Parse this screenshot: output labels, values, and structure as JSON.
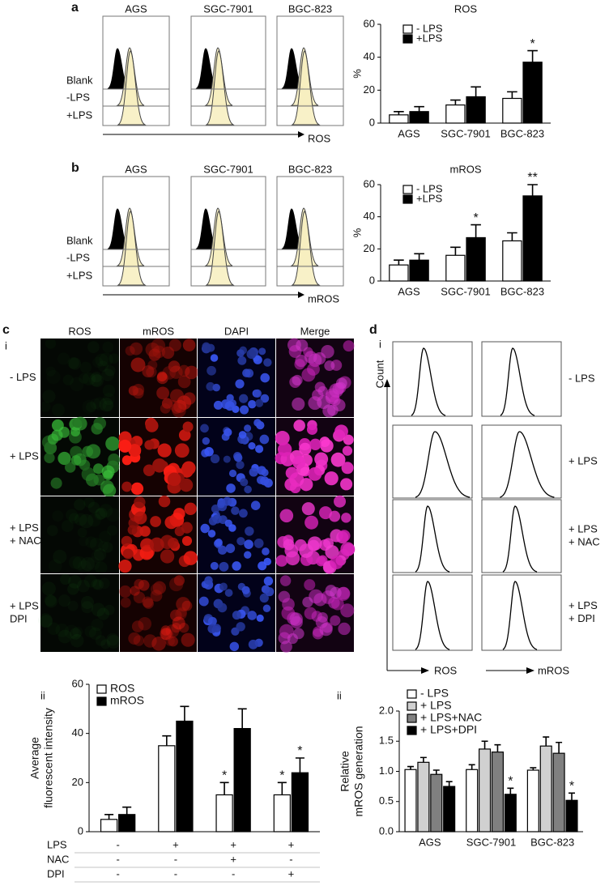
{
  "figure": {
    "panel_a": {
      "label": "a",
      "columns": [
        "AGS",
        "SGC-7901",
        "BGC-823"
      ],
      "rows": [
        "Blank",
        "-LPS",
        "+LPS"
      ],
      "axis": "ROS"
    },
    "panel_b": {
      "label": "b",
      "columns": [
        "AGS",
        "SGC-7901",
        "BGC-823"
      ],
      "rows": [
        "Blank",
        "-LPS",
        "+LPS"
      ],
      "axis": "mROS"
    },
    "panel_c": {
      "label": "c",
      "sub_i": "i",
      "sub_ii": "ii",
      "columns": [
        "ROS",
        "mROS",
        "DAPI",
        "Merge"
      ],
      "rows": [
        [
          "- LPS"
        ],
        [
          "+ LPS"
        ],
        [
          "+ LPS",
          "+ NAC"
        ],
        [
          "+ LPS",
          "DPI"
        ]
      ]
    },
    "panel_d": {
      "label": "d",
      "sub_i": "i",
      "sub_ii": "ii",
      "y_axis": "Count",
      "rows": [
        [
          "- LPS"
        ],
        [
          "+ LPS"
        ],
        [
          "+ LPS",
          "+ NAC"
        ],
        [
          "+ LPS",
          "+ DPI"
        ]
      ],
      "axes": [
        "ROS",
        "mROS"
      ]
    }
  },
  "chart_data": [
    {
      "type": "bar",
      "title": "ROS",
      "ylabel": "%",
      "categories": [
        "AGS",
        "SGC-7901",
        "BGC-823"
      ],
      "series": [
        {
          "name": "- LPS",
          "color": "#ffffff",
          "values": [
            5,
            11,
            15
          ],
          "errors": [
            2,
            3,
            4
          ],
          "markers": [
            null,
            null,
            null
          ]
        },
        {
          "name": "+LPS",
          "color": "#000000",
          "values": [
            7,
            16,
            37
          ],
          "errors": [
            3,
            6,
            7
          ],
          "markers": [
            null,
            null,
            "*"
          ]
        }
      ],
      "ylim": [
        0,
        60
      ],
      "yticks": [
        0,
        20,
        40,
        60
      ]
    },
    {
      "type": "bar",
      "title": "mROS",
      "ylabel": "%",
      "categories": [
        "AGS",
        "SGC-7901",
        "BGC-823"
      ],
      "series": [
        {
          "name": "- LPS",
          "color": "#ffffff",
          "values": [
            10,
            16,
            25
          ],
          "errors": [
            3,
            5,
            5
          ],
          "markers": [
            null,
            null,
            null
          ]
        },
        {
          "name": "+LPS",
          "color": "#000000",
          "values": [
            13,
            27,
            53
          ],
          "errors": [
            4,
            8,
            7
          ],
          "markers": [
            null,
            "*",
            "**"
          ]
        }
      ],
      "ylim": [
        0,
        60
      ],
      "yticks": [
        0,
        20,
        40,
        60
      ]
    },
    {
      "type": "bar",
      "ylabel": [
        "Average",
        "fluorescent intensity"
      ],
      "categories": [
        null,
        null,
        null,
        null
      ],
      "series": [
        {
          "name": "ROS",
          "color": "#ffffff",
          "values": [
            5,
            35,
            15,
            15
          ],
          "errors": [
            2,
            4,
            5,
            5
          ],
          "markers": [
            null,
            null,
            "*",
            "*"
          ]
        },
        {
          "name": "mROS",
          "color": "#000000",
          "values": [
            7,
            45,
            42,
            24
          ],
          "errors": [
            3,
            6,
            8,
            6
          ],
          "markers": [
            null,
            null,
            null,
            "*"
          ]
        }
      ],
      "treatment_table": [
        {
          "name": "LPS",
          "values": [
            "-",
            "+",
            "+",
            "+"
          ]
        },
        {
          "name": "NAC",
          "values": [
            "-",
            "-",
            "+",
            "-"
          ]
        },
        {
          "name": "DPI",
          "values": [
            "-",
            "-",
            "-",
            "+"
          ]
        }
      ],
      "ylim": [
        0,
        60
      ],
      "yticks": [
        0,
        20,
        40,
        60
      ]
    },
    {
      "type": "bar",
      "ylabel": [
        "Relative",
        "mROS generation"
      ],
      "categories": [
        "AGS",
        "SGC-7901",
        "BGC-823"
      ],
      "series": [
        {
          "name": "-  LPS",
          "color": "#ffffff",
          "values": [
            1.03,
            1.03,
            1.02
          ],
          "errors": [
            0.05,
            0.08,
            0.04
          ],
          "markers": [
            null,
            null,
            null
          ]
        },
        {
          "name": "+ LPS",
          "color": "#d0d0d0",
          "values": [
            1.15,
            1.37,
            1.42
          ],
          "errors": [
            0.08,
            0.13,
            0.15
          ],
          "markers": [
            null,
            null,
            null
          ]
        },
        {
          "name": "+ LPS+NAC",
          "color": "#808080",
          "values": [
            0.95,
            1.32,
            1.3
          ],
          "errors": [
            0.07,
            0.12,
            0.18
          ],
          "markers": [
            null,
            null,
            null
          ]
        },
        {
          "name": "+ LPS+DPI",
          "color": "#000000",
          "values": [
            0.75,
            0.62,
            0.52
          ],
          "errors": [
            0.08,
            0.1,
            0.12
          ],
          "markers": [
            null,
            "*",
            "*"
          ]
        }
      ],
      "ylim": [
        0,
        2.0
      ],
      "yticks": [
        {
          "value": 0,
          "label": "0.0"
        },
        {
          "value": 0.5,
          "label": "0.5"
        },
        {
          "value": 1,
          "label": "1.0"
        },
        {
          "value": 1.5,
          "label": "1.5"
        },
        {
          "value": 2,
          "label": "2.0"
        }
      ]
    }
  ]
}
